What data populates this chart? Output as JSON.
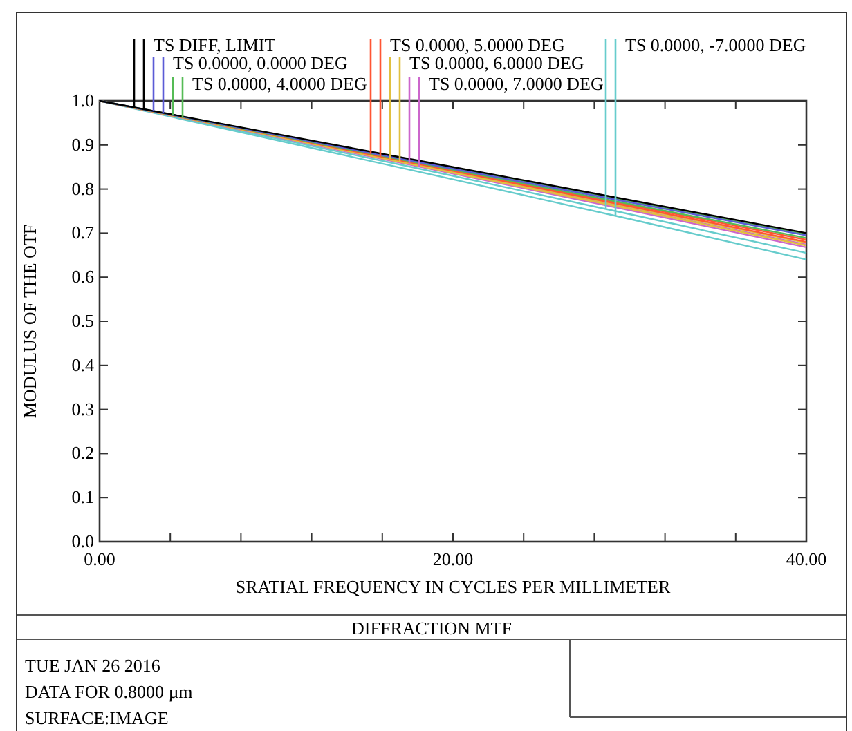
{
  "chart_data": {
    "type": "line",
    "title": "DIFFRACTION MTF",
    "xlabel": "SRATIAL FREQUENCY IN CYCLES PER MILLIMETER",
    "ylabel": "MODULUS OF THE OTF",
    "x": [
      0,
      10,
      20,
      30,
      40
    ],
    "series": [
      {
        "name": "TS DIFF, LIMIT",
        "color": "#000000",
        "values": [
          1.0,
          0.925,
          0.85,
          0.775,
          0.7
        ]
      },
      {
        "name": "TS 0.0000, 0.0000 DEG",
        "color": "#5b5bd6",
        "values": [
          1.0,
          0.923,
          0.846,
          0.77,
          0.695
        ]
      },
      {
        "name": "TS 0.0000, 4.0000 DEG",
        "color": "#55bb55",
        "values": [
          1.0,
          0.924,
          0.848,
          0.772,
          0.697
        ]
      },
      {
        "color": "#55bb55",
        "values": [
          1.0,
          0.922,
          0.844,
          0.766,
          0.689
        ]
      },
      {
        "name": "TS 0.0000, 5.0000 DEG",
        "color": "#ff5533",
        "values": [
          1.0,
          0.922,
          0.843,
          0.764,
          0.685
        ]
      },
      {
        "color": "#ff5533",
        "values": [
          1.0,
          0.921,
          0.841,
          0.761,
          0.68
        ]
      },
      {
        "name": "TS 0.0000, 6.0000 DEG",
        "color": "#e0c040",
        "values": [
          1.0,
          0.92,
          0.84,
          0.759,
          0.678
        ]
      },
      {
        "color": "#e0c040",
        "values": [
          1.0,
          0.919,
          0.837,
          0.755,
          0.672
        ]
      },
      {
        "name": "TS 0.0000, 7.0000 DEG",
        "color": "#cc66cc",
        "values": [
          1.0,
          0.919,
          0.838,
          0.756,
          0.674
        ]
      },
      {
        "color": "#cc66cc",
        "values": [
          1.0,
          0.918,
          0.835,
          0.752,
          0.668
        ]
      },
      {
        "name": "TS 0.0000, -7.0000 DEG",
        "color": "#66cccc",
        "values": [
          1.0,
          0.915,
          0.83,
          0.743,
          0.655
        ]
      },
      {
        "color": "#66cccc",
        "values": [
          1.0,
          0.911,
          0.822,
          0.732,
          0.64
        ]
      }
    ],
    "xlim": [
      0,
      40
    ],
    "xticks": [
      {
        "value": 0,
        "label": "0.00"
      },
      {
        "value": 4,
        "label": null
      },
      {
        "value": 8,
        "label": null
      },
      {
        "value": 12,
        "label": null
      },
      {
        "value": 16,
        "label": null
      },
      {
        "value": 20,
        "label": "20.00"
      },
      {
        "value": 24,
        "label": null
      },
      {
        "value": 28,
        "label": null
      },
      {
        "value": 32,
        "label": null
      },
      {
        "value": 36,
        "label": null
      },
      {
        "value": 40,
        "label": "40.00"
      }
    ],
    "ylim": [
      0,
      1
    ],
    "yticks": [
      {
        "value": 0,
        "label": "0.0"
      },
      {
        "value": 0.1,
        "label": "0.1"
      },
      {
        "value": 0.2,
        "label": "0.2"
      },
      {
        "value": 0.3,
        "label": "0.3"
      },
      {
        "value": 0.4,
        "label": "0.4"
      },
      {
        "value": 0.5,
        "label": "0.5"
      },
      {
        "value": 0.6,
        "label": "0.6"
      },
      {
        "value": 0.7,
        "label": "0.7"
      },
      {
        "value": 0.8,
        "label": "0.8"
      },
      {
        "value": 0.9,
        "label": "0.9"
      },
      {
        "value": 1.0,
        "label": "1.0"
      }
    ],
    "grid": false,
    "legend": "top",
    "marker": "none",
    "line_style": "solid",
    "annotations": [
      "TUE JAN 26 2016",
      "DATA FOR 0.8000 µm",
      "SURFACE:IMAGE"
    ]
  }
}
